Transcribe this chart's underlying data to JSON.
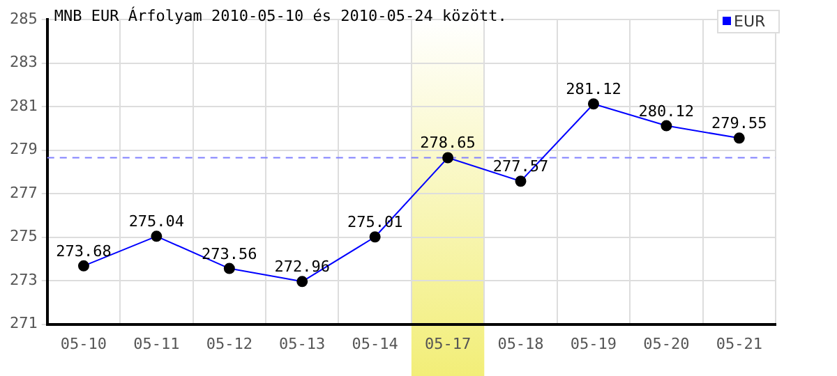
{
  "chart_data": {
    "type": "line",
    "title": "MNB EUR Árfolyam 2010-05-10 és 2010-05-24 között.",
    "categories": [
      "05-10",
      "05-11",
      "05-12",
      "05-13",
      "05-14",
      "05-17",
      "05-18",
      "05-19",
      "05-20",
      "05-21"
    ],
    "series": [
      {
        "name": "EUR",
        "color": "#0000ff",
        "values": [
          273.68,
          275.04,
          273.56,
          272.96,
          275.01,
          278.65,
          277.57,
          281.12,
          280.12,
          279.55
        ]
      }
    ],
    "ylim": [
      271,
      285
    ],
    "yticks": [
      271,
      273,
      275,
      277,
      279,
      281,
      283,
      285
    ],
    "ref_lines": [
      {
        "axis": "y",
        "value": 278.65,
        "color": "#8080ff",
        "line_style": "dashed"
      }
    ],
    "bands": [
      {
        "axis": "x",
        "from": "05-17",
        "to": "05-17",
        "color": "#f2ee78"
      }
    ],
    "grid": true,
    "legend": "top right",
    "marker": "circle",
    "line_style": "solid",
    "data_labels": true
  }
}
